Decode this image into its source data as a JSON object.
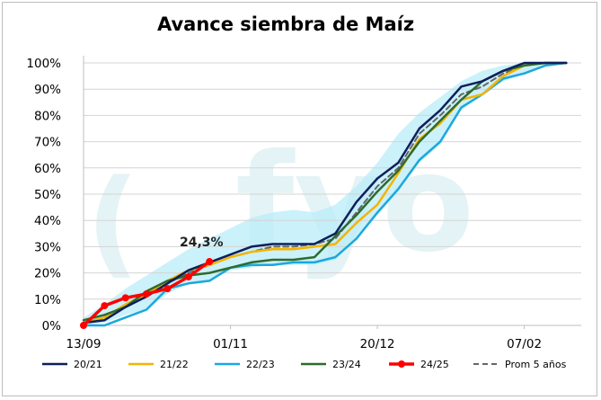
{
  "chart_data": {
    "type": "line",
    "title": "Avance siembra de Maíz",
    "xlabel": "",
    "ylabel": "",
    "x_tick_labels": [
      "13/09",
      "01/11",
      "20/12",
      "07/02"
    ],
    "y_tick_labels": [
      "0%",
      "10%",
      "20%",
      "30%",
      "40%",
      "50%",
      "60%",
      "70%",
      "80%",
      "90%",
      "100%"
    ],
    "ylim": [
      0,
      100
    ],
    "grid": "horizontal",
    "legend_position": "bottom",
    "annotation": {
      "text": "24,3%",
      "x": "2024-10-28",
      "y": 24.3
    },
    "watermark": "fyo",
    "band": {
      "color": "#b9ecf8",
      "lower": [
        [
          "2024-09-13",
          0
        ],
        [
          "2024-09-20",
          1
        ],
        [
          "2024-09-27",
          4
        ],
        [
          "2024-10-04",
          6
        ],
        [
          "2024-10-11",
          12
        ],
        [
          "2024-10-18",
          16
        ],
        [
          "2024-10-25",
          17
        ],
        [
          "2024-11-01",
          21
        ],
        [
          "2024-11-08",
          22
        ],
        [
          "2024-11-15",
          23
        ],
        [
          "2024-11-22",
          23
        ],
        [
          "2024-11-29",
          23
        ],
        [
          "2024-12-06",
          25
        ],
        [
          "2024-12-13",
          33
        ],
        [
          "2024-12-20",
          42
        ],
        [
          "2024-12-27",
          51
        ],
        [
          "2025-01-03",
          62
        ],
        [
          "2025-01-10",
          69
        ],
        [
          "2025-01-17",
          82
        ],
        [
          "2025-01-24",
          88
        ],
        [
          "2025-01-31",
          93
        ],
        [
          "2025-02-07",
          96
        ],
        [
          "2025-02-14",
          99
        ],
        [
          "2025-02-21",
          100
        ]
      ],
      "upper": [
        [
          "2024-09-13",
          3
        ],
        [
          "2024-09-20",
          8
        ],
        [
          "2024-09-27",
          14
        ],
        [
          "2024-10-04",
          19
        ],
        [
          "2024-10-11",
          24
        ],
        [
          "2024-10-18",
          29
        ],
        [
          "2024-10-25",
          33
        ],
        [
          "2024-11-01",
          37
        ],
        [
          "2024-11-08",
          41
        ],
        [
          "2024-11-15",
          43
        ],
        [
          "2024-11-22",
          44
        ],
        [
          "2024-11-29",
          43
        ],
        [
          "2024-12-06",
          46
        ],
        [
          "2024-12-13",
          53
        ],
        [
          "2024-12-20",
          62
        ],
        [
          "2024-12-27",
          73
        ],
        [
          "2025-01-03",
          81
        ],
        [
          "2025-01-10",
          87
        ],
        [
          "2025-01-17",
          93
        ],
        [
          "2025-01-24",
          97
        ],
        [
          "2025-01-31",
          99
        ],
        [
          "2025-02-07",
          100
        ],
        [
          "2025-02-14",
          100
        ],
        [
          "2025-02-21",
          100
        ]
      ]
    },
    "series": [
      {
        "name": "20/21",
        "color": "#0d1f5c",
        "width": 2.5,
        "dash": "",
        "marker": false,
        "points": [
          [
            "2024-09-13",
            1
          ],
          [
            "2024-09-20",
            2
          ],
          [
            "2024-09-27",
            7
          ],
          [
            "2024-10-04",
            11
          ],
          [
            "2024-10-11",
            16
          ],
          [
            "2024-10-18",
            21
          ],
          [
            "2024-10-25",
            24
          ],
          [
            "2024-11-01",
            27
          ],
          [
            "2024-11-08",
            30
          ],
          [
            "2024-11-15",
            31
          ],
          [
            "2024-11-22",
            31
          ],
          [
            "2024-11-29",
            31
          ],
          [
            "2024-12-06",
            35
          ],
          [
            "2024-12-13",
            47
          ],
          [
            "2024-12-20",
            56
          ],
          [
            "2024-12-27",
            62
          ],
          [
            "2025-01-03",
            75
          ],
          [
            "2025-01-10",
            82
          ],
          [
            "2025-01-17",
            91
          ],
          [
            "2025-01-24",
            93
          ],
          [
            "2025-01-31",
            97
          ],
          [
            "2025-02-07",
            100
          ],
          [
            "2025-02-14",
            100
          ],
          [
            "2025-02-21",
            100
          ]
        ]
      },
      {
        "name": "21/22",
        "color": "#f4b400",
        "width": 2.5,
        "dash": "",
        "marker": false,
        "points": [
          [
            "2024-09-13",
            1
          ],
          [
            "2024-09-20",
            3
          ],
          [
            "2024-09-27",
            8
          ],
          [
            "2024-10-04",
            12
          ],
          [
            "2024-10-11",
            17
          ],
          [
            "2024-10-18",
            21
          ],
          [
            "2024-10-25",
            23
          ],
          [
            "2024-11-01",
            26
          ],
          [
            "2024-11-08",
            28
          ],
          [
            "2024-11-15",
            29
          ],
          [
            "2024-11-22",
            29
          ],
          [
            "2024-11-29",
            30
          ],
          [
            "2024-12-06",
            31
          ],
          [
            "2024-12-13",
            39
          ],
          [
            "2024-12-20",
            46
          ],
          [
            "2024-12-27",
            58
          ],
          [
            "2025-01-03",
            71
          ],
          [
            "2025-01-10",
            77
          ],
          [
            "2025-01-17",
            86
          ],
          [
            "2025-01-24",
            88
          ],
          [
            "2025-01-31",
            95
          ],
          [
            "2025-02-07",
            99
          ],
          [
            "2025-02-14",
            100
          ],
          [
            "2025-02-21",
            100
          ]
        ]
      },
      {
        "name": "22/23",
        "color": "#1ba8dc",
        "width": 2.5,
        "dash": "",
        "marker": false,
        "points": [
          [
            "2024-09-13",
            0
          ],
          [
            "2024-09-20",
            0
          ],
          [
            "2024-09-27",
            3
          ],
          [
            "2024-10-04",
            6
          ],
          [
            "2024-10-11",
            14
          ],
          [
            "2024-10-18",
            16
          ],
          [
            "2024-10-25",
            17
          ],
          [
            "2024-11-01",
            22
          ],
          [
            "2024-11-08",
            23
          ],
          [
            "2024-11-15",
            23
          ],
          [
            "2024-11-22",
            24
          ],
          [
            "2024-11-29",
            24
          ],
          [
            "2024-12-06",
            26
          ],
          [
            "2024-12-13",
            33
          ],
          [
            "2024-12-20",
            43
          ],
          [
            "2024-12-27",
            52
          ],
          [
            "2025-01-03",
            63
          ],
          [
            "2025-01-10",
            70
          ],
          [
            "2025-01-17",
            83
          ],
          [
            "2025-01-24",
            88
          ],
          [
            "2025-01-31",
            94
          ],
          [
            "2025-02-07",
            96
          ],
          [
            "2025-02-14",
            99
          ],
          [
            "2025-02-21",
            100
          ]
        ]
      },
      {
        "name": "23/24",
        "color": "#2e6b2e",
        "width": 2.5,
        "dash": "",
        "marker": false,
        "points": [
          [
            "2024-09-13",
            2
          ],
          [
            "2024-09-20",
            4
          ],
          [
            "2024-09-27",
            7
          ],
          [
            "2024-10-04",
            13
          ],
          [
            "2024-10-11",
            17
          ],
          [
            "2024-10-18",
            19
          ],
          [
            "2024-10-25",
            20
          ],
          [
            "2024-11-01",
            22
          ],
          [
            "2024-11-08",
            24
          ],
          [
            "2024-11-15",
            25
          ],
          [
            "2024-11-22",
            25
          ],
          [
            "2024-11-29",
            26
          ],
          [
            "2024-12-06",
            34
          ],
          [
            "2024-12-13",
            42
          ],
          [
            "2024-12-20",
            51
          ],
          [
            "2024-12-27",
            59
          ],
          [
            "2025-01-03",
            70
          ],
          [
            "2025-01-10",
            78
          ],
          [
            "2025-01-17",
            86
          ],
          [
            "2025-01-24",
            93
          ],
          [
            "2025-01-31",
            97
          ],
          [
            "2025-02-07",
            99
          ],
          [
            "2025-02-14",
            100
          ],
          [
            "2025-02-21",
            100
          ]
        ]
      },
      {
        "name": "24/25",
        "color": "#ff0000",
        "width": 3.5,
        "dash": "",
        "marker": true,
        "points": [
          [
            "2024-09-13",
            0
          ],
          [
            "2024-09-20",
            7.5
          ],
          [
            "2024-09-27",
            10.5
          ],
          [
            "2024-10-04",
            12
          ],
          [
            "2024-10-11",
            14
          ],
          [
            "2024-10-18",
            18.5
          ],
          [
            "2024-10-25",
            24.3
          ]
        ]
      },
      {
        "name": "Prom 5 años",
        "color": "#666666",
        "width": 2,
        "dash": "6,4",
        "marker": false,
        "points": [
          [
            "2024-09-13",
            1
          ],
          [
            "2024-09-20",
            3
          ],
          [
            "2024-09-27",
            7
          ],
          [
            "2024-10-04",
            11
          ],
          [
            "2024-10-11",
            16
          ],
          [
            "2024-10-18",
            20
          ],
          [
            "2024-10-25",
            23
          ],
          [
            "2024-11-01",
            26
          ],
          [
            "2024-11-08",
            28
          ],
          [
            "2024-11-15",
            30
          ],
          [
            "2024-11-22",
            30
          ],
          [
            "2024-11-29",
            31
          ],
          [
            "2024-12-06",
            33
          ],
          [
            "2024-12-13",
            43
          ],
          [
            "2024-12-20",
            53
          ],
          [
            "2024-12-27",
            60
          ],
          [
            "2025-01-03",
            73
          ],
          [
            "2025-01-10",
            80
          ],
          [
            "2025-01-17",
            88
          ],
          [
            "2025-01-24",
            91
          ],
          [
            "2025-01-31",
            96
          ],
          [
            "2025-02-07",
            99
          ],
          [
            "2025-02-14",
            100
          ],
          [
            "2025-02-21",
            100
          ]
        ]
      }
    ]
  }
}
